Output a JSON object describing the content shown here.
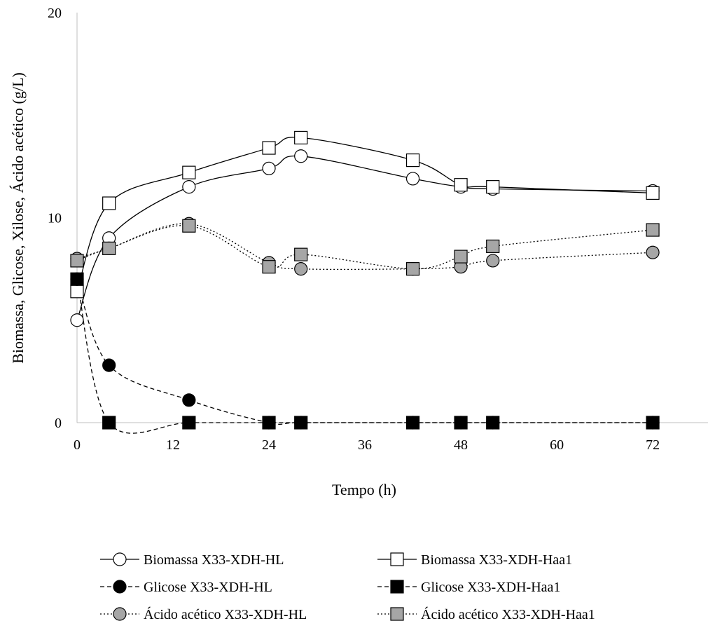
{
  "chart_data": {
    "type": "line",
    "xlabel": "Tempo (h)",
    "ylabel": "Biomassa, Glicose, Xilose, Ácido acético (g/L)",
    "xlim": [
      0,
      79
    ],
    "ylim": [
      0,
      20
    ],
    "xticks": [
      0,
      12,
      24,
      36,
      48,
      60,
      72
    ],
    "yticks": [
      0,
      10,
      20
    ],
    "grid": false,
    "legend_position": "bottom",
    "series": [
      {
        "name": "Biomassa X33-XDH-HL",
        "line_style": "solid",
        "marker": "circle",
        "marker_fill": "#ffffff",
        "x": [
          0,
          4,
          14,
          24,
          28,
          42,
          48,
          52,
          72
        ],
        "y": [
          5.0,
          9.0,
          11.5,
          12.4,
          13.0,
          11.9,
          11.5,
          11.4,
          11.3
        ]
      },
      {
        "name": "Biomassa X33-XDH-Haa1",
        "line_style": "solid",
        "marker": "square",
        "marker_fill": "#ffffff",
        "x": [
          0,
          4,
          14,
          24,
          28,
          42,
          48,
          52,
          72
        ],
        "y": [
          6.4,
          10.7,
          12.2,
          13.4,
          13.9,
          12.8,
          11.6,
          11.5,
          11.2
        ]
      },
      {
        "name": "Glicose X33-XDH-HL",
        "line_style": "dashed",
        "marker": "circle",
        "marker_fill": "#000000",
        "x": [
          0,
          4,
          14,
          24,
          28,
          42,
          48,
          52,
          72
        ],
        "y": [
          7.0,
          2.8,
          1.1,
          0,
          0,
          0,
          0,
          0,
          0
        ]
      },
      {
        "name": "Glicose X33-XDH-Haa1",
        "line_style": "dashed",
        "marker": "square",
        "marker_fill": "#000000",
        "x": [
          0,
          4,
          14,
          24,
          28,
          42,
          48,
          52,
          72
        ],
        "y": [
          7.0,
          0,
          0,
          0,
          0,
          0,
          0,
          0,
          0
        ]
      },
      {
        "name": "Ácido acético X33-XDH-HL",
        "line_style": "dotted",
        "marker": "circle",
        "marker_fill": "#a6a6a6",
        "x": [
          0,
          4,
          14,
          24,
          28,
          42,
          48,
          52,
          72
        ],
        "y": [
          8.0,
          8.5,
          9.7,
          7.8,
          7.5,
          7.5,
          7.6,
          7.9,
          8.3
        ]
      },
      {
        "name": "Ácido acético X33-XDH-Haa1",
        "line_style": "dotted",
        "marker": "square",
        "marker_fill": "#a6a6a6",
        "x": [
          0,
          4,
          14,
          24,
          28,
          42,
          48,
          52,
          72
        ],
        "y": [
          7.9,
          8.5,
          9.6,
          7.6,
          8.2,
          7.5,
          8.1,
          8.6,
          9.4
        ]
      }
    ]
  }
}
